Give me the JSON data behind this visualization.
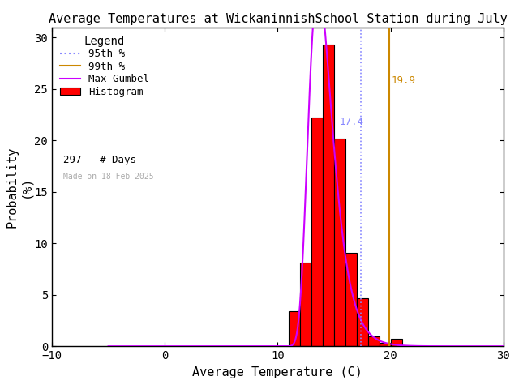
{
  "title": "Average Temperatures at WickaninnishSchool Station during July",
  "xlabel": "Average Temperature (C)",
  "ylabel": "Probability\n(%)",
  "xlim": [
    -10,
    30
  ],
  "ylim": [
    0,
    31
  ],
  "xticks": [
    -10,
    0,
    10,
    20,
    30
  ],
  "yticks": [
    0,
    5,
    10,
    15,
    20,
    25,
    30
  ],
  "bar_edges": [
    9.0,
    10.0,
    11.0,
    12.0,
    13.0,
    14.0,
    15.0,
    16.0,
    17.0,
    18.0,
    19.0,
    20.0,
    21.0
  ],
  "bar_heights": [
    0.0,
    0.0,
    3.4,
    8.1,
    22.2,
    29.3,
    20.2,
    9.1,
    4.7,
    1.0,
    0.3,
    0.7
  ],
  "bar_color": "#ff0000",
  "bar_edge_color": "#000000",
  "gumbel_mu": 13.6,
  "gumbel_beta": 1.05,
  "pct_95": 17.4,
  "pct_99": 19.9,
  "pct_95_color": "#8888ff",
  "pct_99_color": "#cc8800",
  "gumbel_color": "#cc00ff",
  "num_days": 297,
  "made_on": "Made on 18 Feb 2025",
  "bg_color": "#ffffff",
  "title_color": "#000000"
}
